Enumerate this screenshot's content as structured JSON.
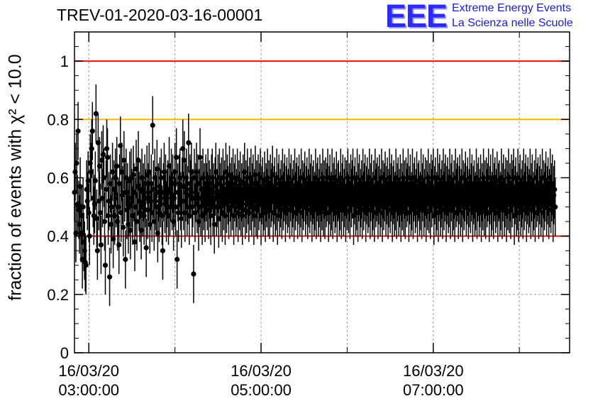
{
  "header": {
    "title": "TREV-01-2020-03-16-00001",
    "logo": "EEE",
    "tagline_1": "Extreme Energy Events",
    "tagline_2": "La Scienza nelle Scuole"
  },
  "chart_data": {
    "type": "scatter",
    "title": "TREV-01-2020-03-16-00001",
    "xlabel": "",
    "ylabel": "fraction of events with χ² < 10.0",
    "xlim": [
      "16/03/20 02:50:00",
      "16/03/20 08:35:00"
    ],
    "ylim": [
      0,
      1.1
    ],
    "x_ticks": [
      {
        "date": "16/03/20",
        "time": "03:00:00"
      },
      {
        "date": "16/03/20",
        "time": "05:00:00"
      },
      {
        "date": "16/03/20",
        "time": "07:00:00"
      }
    ],
    "y_ticks": [
      "0",
      "0.2",
      "0.4",
      "0.6",
      "0.8",
      "1"
    ],
    "grid": true,
    "reference_lines": [
      {
        "y": 1.0,
        "color": "#e8100c"
      },
      {
        "y": 0.8,
        "color": "#f5b800"
      },
      {
        "y": 0.4,
        "color": "#e8100c"
      }
    ],
    "marker_color": "#000000",
    "series": [
      {
        "x_start": "16/03/20 02:50:00",
        "x_interval_minutes": 0.5,
        "y": [
          0.55,
          0.62,
          0.41,
          0.65,
          0.51,
          0.76,
          0.49,
          0.44,
          0.57,
          0.41,
          0.47,
          0.32,
          0.5,
          0.38,
          0.35,
          0.31,
          0.3,
          0.56,
          0.52,
          0.59,
          0.48,
          0.4,
          0.65,
          0.62,
          0.7,
          0.76,
          0.53,
          0.47,
          0.51,
          0.59,
          0.82,
          0.46,
          0.35,
          0.72,
          0.52,
          0.64,
          0.48,
          0.37,
          0.66,
          0.53,
          0.68,
          0.6,
          0.45,
          0.3,
          0.56,
          0.7,
          0.67,
          0.47,
          0.52,
          0.26,
          0.58,
          0.44,
          0.5,
          0.62,
          0.39,
          0.56,
          0.47,
          0.6,
          0.53,
          0.64,
          0.45,
          0.5,
          0.37,
          0.58,
          0.71,
          0.48,
          0.62,
          0.54,
          0.43,
          0.66,
          0.55,
          0.32,
          0.6,
          0.49,
          0.55,
          0.44,
          0.5,
          0.59,
          0.42,
          0.6,
          0.53,
          0.47,
          0.61,
          0.55,
          0.38,
          0.5,
          0.63,
          0.45,
          0.57,
          0.66,
          0.52,
          0.48,
          0.56,
          0.42,
          0.6,
          0.5,
          0.55,
          0.47,
          0.58,
          0.53,
          0.36,
          0.61,
          0.49,
          0.55,
          0.62,
          0.44,
          0.52,
          0.58,
          0.48,
          0.78,
          0.56,
          0.45,
          0.6,
          0.52,
          0.5,
          0.63,
          0.41,
          0.55,
          0.48,
          0.57,
          0.53,
          0.6,
          0.47,
          0.35,
          0.55,
          0.62,
          0.51,
          0.58,
          0.48,
          0.53,
          0.56,
          0.47,
          0.64,
          0.5,
          0.55,
          0.6,
          0.52,
          0.58,
          0.45,
          0.53,
          0.62,
          0.5,
          0.67,
          0.32,
          0.55,
          0.48,
          0.58,
          0.6,
          0.52,
          0.46,
          0.57,
          0.7,
          0.52,
          0.66,
          0.48,
          0.55,
          0.6,
          0.5,
          0.54,
          0.72,
          0.47,
          0.58,
          0.56,
          0.62,
          0.5,
          0.53,
          0.27,
          0.6,
          0.48,
          0.55,
          0.62,
          0.51,
          0.58,
          0.45,
          0.53,
          0.67,
          0.5,
          0.56,
          0.47,
          0.6,
          0.52,
          0.55,
          0.48,
          0.58,
          0.55,
          0.52,
          0.6,
          0.49,
          0.56,
          0.53,
          0.47,
          0.58,
          0.6,
          0.5,
          0.55,
          0.44,
          0.57,
          0.62,
          0.5,
          0.53,
          0.58,
          0.46,
          0.6,
          0.55,
          0.5,
          0.57,
          0.48,
          0.6,
          0.52,
          0.56,
          0.47,
          0.62,
          0.51,
          0.58,
          0.54,
          0.49,
          0.61,
          0.55,
          0.5,
          0.57,
          0.52,
          0.6,
          0.47,
          0.55,
          0.58,
          0.5,
          0.53,
          0.6,
          0.48,
          0.56,
          0.52,
          0.59,
          0.5,
          0.55,
          0.47,
          0.58,
          0.53,
          0.62,
          0.49,
          0.56,
          0.51,
          0.6,
          0.54,
          0.48,
          0.57,
          0.52,
          0.6,
          0.5,
          0.55,
          0.58,
          0.47,
          0.53,
          0.61,
          0.5,
          0.56,
          0.49,
          0.58,
          0.52,
          0.55,
          0.6,
          0.47,
          0.54,
          0.57,
          0.5,
          0.52,
          0.59,
          0.48,
          0.55,
          0.53,
          0.6,
          0.5,
          0.56,
          0.49,
          0.58,
          0.53,
          0.55,
          0.61,
          0.48,
          0.54,
          0.57,
          0.5,
          0.52,
          0.6,
          0.47,
          0.55,
          0.58,
          0.5,
          0.53,
          0.56,
          0.49,
          0.6,
          0.52,
          0.55,
          0.58,
          0.48,
          0.54,
          0.57,
          0.51,
          0.53,
          0.6,
          0.49,
          0.55,
          0.58,
          0.5,
          0.53,
          0.56,
          0.48,
          0.6,
          0.52,
          0.55,
          0.57,
          0.49,
          0.54,
          0.58,
          0.5,
          0.53,
          0.6,
          0.48,
          0.56,
          0.52,
          0.55,
          0.59,
          0.5,
          0.54,
          0.57,
          0.49,
          0.53,
          0.6,
          0.51,
          0.55,
          0.58,
          0.48,
          0.54,
          0.56,
          0.5,
          0.52,
          0.6,
          0.49,
          0.55,
          0.57,
          0.5,
          0.53,
          0.58,
          0.48,
          0.55,
          0.52,
          0.6,
          0.5,
          0.56,
          0.49,
          0.57,
          0.53,
          0.55,
          0.6,
          0.48,
          0.54,
          0.58,
          0.5,
          0.52,
          0.6,
          0.49,
          0.55,
          0.57,
          0.51,
          0.53,
          0.59,
          0.48,
          0.55,
          0.56,
          0.5,
          0.52,
          0.6,
          0.49,
          0.55,
          0.58,
          0.5,
          0.53,
          0.57,
          0.48,
          0.56,
          0.52,
          0.6,
          0.51,
          0.55,
          0.49,
          0.58,
          0.53,
          0.56,
          0.6,
          0.47,
          0.54,
          0.57,
          0.5,
          0.52,
          0.6,
          0.48,
          0.55,
          0.58,
          0.5,
          0.53,
          0.56,
          0.49,
          0.6,
          0.52,
          0.55,
          0.58,
          0.48,
          0.54,
          0.57,
          0.51,
          0.53,
          0.6,
          0.49,
          0.55,
          0.58,
          0.5,
          0.52,
          0.56,
          0.48,
          0.6,
          0.53,
          0.55,
          0.57,
          0.49,
          0.54,
          0.58,
          0.5,
          0.53,
          0.6,
          0.48,
          0.56,
          0.52,
          0.55,
          0.59,
          0.5,
          0.54,
          0.57,
          0.49,
          0.53,
          0.6,
          0.51,
          0.55,
          0.58,
          0.48,
          0.54,
          0.56,
          0.5,
          0.52,
          0.6,
          0.49,
          0.55,
          0.57,
          0.5,
          0.53,
          0.58,
          0.48,
          0.55,
          0.52,
          0.6,
          0.5,
          0.56,
          0.49,
          0.57,
          0.53,
          0.55,
          0.6,
          0.48,
          0.54,
          0.58,
          0.5,
          0.52,
          0.6,
          0.49,
          0.55,
          0.57,
          0.51,
          0.53,
          0.59,
          0.48,
          0.55,
          0.56,
          0.5,
          0.52,
          0.6,
          0.49,
          0.55,
          0.58,
          0.5,
          0.53,
          0.57,
          0.48,
          0.56,
          0.52,
          0.6,
          0.51,
          0.55,
          0.49,
          0.58,
          0.53,
          0.56,
          0.6,
          0.47,
          0.54,
          0.57,
          0.5,
          0.52,
          0.6,
          0.48,
          0.55,
          0.58,
          0.5,
          0.53,
          0.56,
          0.49,
          0.6,
          0.52,
          0.55,
          0.58,
          0.48,
          0.54,
          0.57,
          0.51,
          0.53,
          0.6,
          0.49,
          0.55,
          0.58,
          0.5,
          0.52,
          0.56,
          0.48,
          0.6,
          0.53,
          0.55,
          0.57,
          0.49,
          0.54,
          0.58,
          0.5,
          0.53,
          0.6,
          0.48,
          0.56,
          0.52,
          0.55,
          0.59,
          0.5,
          0.54,
          0.57,
          0.49,
          0.53,
          0.6,
          0.51,
          0.55,
          0.58,
          0.48,
          0.54,
          0.56,
          0.5,
          0.52,
          0.6,
          0.49,
          0.55,
          0.57,
          0.5,
          0.53,
          0.58,
          0.48,
          0.55,
          0.52,
          0.6,
          0.5,
          0.56,
          0.49,
          0.57,
          0.53,
          0.55,
          0.6,
          0.48,
          0.54,
          0.58,
          0.5,
          0.52,
          0.6,
          0.49,
          0.55,
          0.57,
          0.51,
          0.53,
          0.59,
          0.48,
          0.55,
          0.56,
          0.5,
          0.52,
          0.6,
          0.49,
          0.55,
          0.58,
          0.5,
          0.53,
          0.57,
          0.48,
          0.56,
          0.52,
          0.6,
          0.51,
          0.55,
          0.49,
          0.58,
          0.53,
          0.56,
          0.6,
          0.47,
          0.54,
          0.57,
          0.5,
          0.52,
          0.6,
          0.48,
          0.55,
          0.58,
          0.5,
          0.53,
          0.56,
          0.49,
          0.6,
          0.52,
          0.55,
          0.58,
          0.48,
          0.54,
          0.57,
          0.51,
          0.53,
          0.6,
          0.49,
          0.55,
          0.58,
          0.5,
          0.52,
          0.56,
          0.48,
          0.6,
          0.53,
          0.55,
          0.57,
          0.49,
          0.54,
          0.58,
          0.5,
          0.53,
          0.6,
          0.48,
          0.56,
          0.52,
          0.55,
          0.59,
          0.5,
          0.54,
          0.57,
          0.49,
          0.53,
          0.6,
          0.51,
          0.55,
          0.58,
          0.48,
          0.54,
          0.56,
          0.5
        ],
        "y_err": 0.1
      }
    ]
  }
}
